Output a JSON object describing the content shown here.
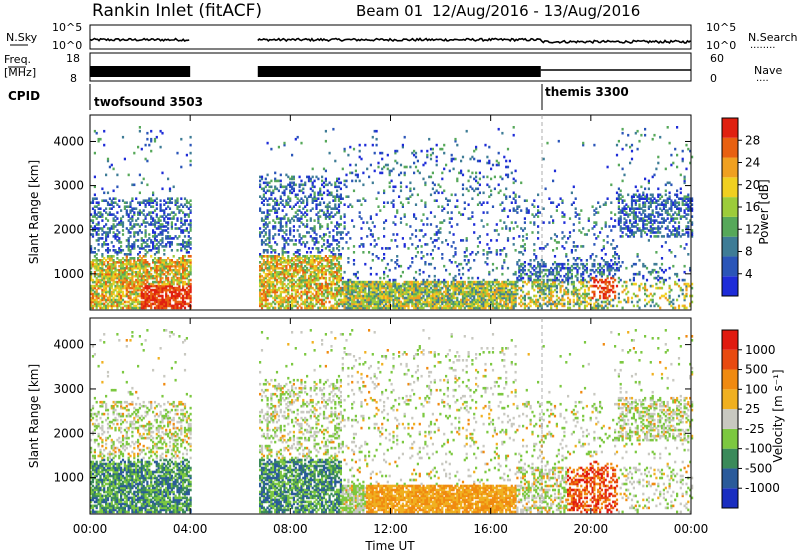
{
  "header": {
    "station": "Rankin Inlet (fitACF)",
    "beam": "Beam 01",
    "date_range": "12/Aug/2016 - 13/Aug/2016"
  },
  "top_panels": {
    "nsky_label": "N.Sky",
    "nsky_ticks": [
      "10^5",
      "10^0"
    ],
    "nsearch_label": "N.Search",
    "nsearch_ticks": [
      "10^5",
      "10^0"
    ],
    "freq_label": "Freq.",
    "freq_unit": "[MHz]",
    "freq_ticks": [
      "18",
      "8"
    ],
    "nave_label": "Nave",
    "nave_ticks": [
      "60",
      "0"
    ],
    "cpid_label": "CPID",
    "modes": [
      {
        "name": "twofsound 3503",
        "start_hour": 0,
        "end_hour": 18
      },
      {
        "name": "themis 3300",
        "start_hour": 18,
        "end_hour": 24
      }
    ],
    "gap": [
      4,
      6.7
    ]
  },
  "chart_data": [
    {
      "type": "heatmap",
      "panel": "power",
      "ylabel": "Slant Range [km]",
      "yticks": [
        1000,
        2000,
        3000,
        4000
      ],
      "ylim": [
        180,
        4600
      ],
      "xlim": [
        0,
        24
      ],
      "colorbar_label": "Power [dB]",
      "colorbar_ticks": [
        "28",
        "24",
        "20",
        "16",
        "12",
        "8",
        "4"
      ],
      "colors": [
        "#1e2cd8",
        "#2a55b8",
        "#3e7c96",
        "#56a85a",
        "#9ccc3a",
        "#f0d020",
        "#f0a020",
        "#e86010",
        "#e02010"
      ]
    },
    {
      "type": "heatmap",
      "panel": "velocity",
      "ylabel": "Slant Range [km]",
      "yticks": [
        1000,
        2000,
        3000,
        4000
      ],
      "ylim": [
        180,
        4600
      ],
      "xlim": [
        0,
        24
      ],
      "xlabel": "Time UT",
      "xticks": [
        "00:00",
        "04:00",
        "08:00",
        "12:00",
        "16:00",
        "20:00",
        "00:00"
      ],
      "colorbar_label": "Velocity [m s⁻¹]",
      "colorbar_ticks": [
        "1000",
        "500",
        "100",
        "25",
        "-25",
        "-100",
        "-500",
        "-1000"
      ],
      "colors": [
        "#1a2ec0",
        "#2a5a9a",
        "#3a8a5a",
        "#7cc840",
        "#c8c8c0",
        "#f0b020",
        "#f08a10",
        "#e84a10",
        "#e01a10"
      ]
    }
  ]
}
